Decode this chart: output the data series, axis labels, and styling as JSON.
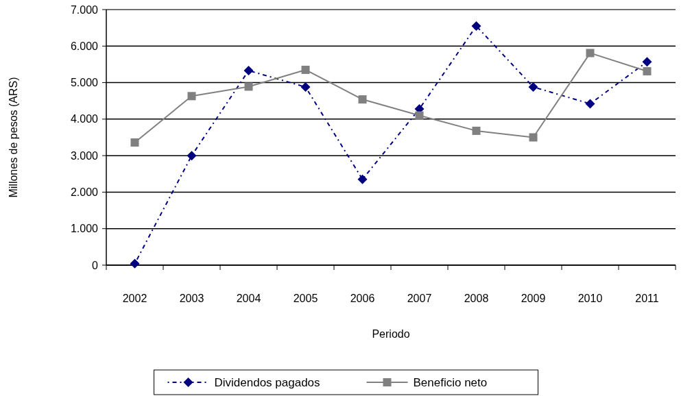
{
  "chart_data": {
    "type": "line",
    "xlabel": "Periodo",
    "ylabel": "Millones de pesos (ARS)",
    "categories": [
      "2002",
      "2003",
      "2004",
      "2005",
      "2006",
      "2007",
      "2008",
      "2009",
      "2010",
      "2011"
    ],
    "series": [
      {
        "name": "Dividendos pagados",
        "color": "#000080",
        "marker": "diamond",
        "line_style": "dotted",
        "values": [
          40,
          3000,
          5330,
          4880,
          2350,
          4280,
          6550,
          4880,
          4420,
          5570
        ]
      },
      {
        "name": "Beneficio neto",
        "color": "#808080",
        "marker": "square",
        "line_style": "solid",
        "values": [
          3360,
          4630,
          4890,
          5350,
          4540,
          4100,
          3680,
          3500,
          5810,
          5310
        ]
      }
    ],
    "ylim": [
      0,
      7000
    ],
    "yticks": [
      {
        "value": 0,
        "label": "0"
      },
      {
        "value": 1000,
        "label": "1.000"
      },
      {
        "value": 2000,
        "label": "2.000"
      },
      {
        "value": 3000,
        "label": "3.000"
      },
      {
        "value": 4000,
        "label": "4.000"
      },
      {
        "value": 5000,
        "label": "5.000"
      },
      {
        "value": 6000,
        "label": "6.000"
      },
      {
        "value": 7000,
        "label": "7.000"
      }
    ],
    "grid": "y",
    "legend": "bottom"
  }
}
